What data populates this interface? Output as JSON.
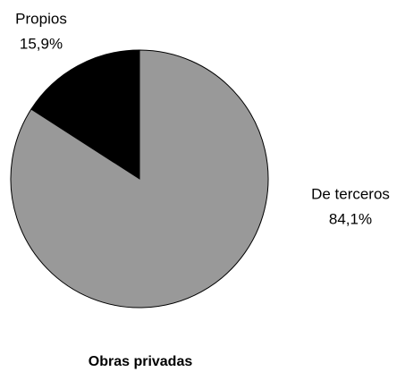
{
  "chart_data": {
    "type": "pie",
    "title": "Obras privadas",
    "categories": [
      "Propios",
      "De terceros"
    ],
    "values": [
      15.9,
      84.1
    ],
    "value_labels": [
      "15,9%",
      "84,1%"
    ],
    "colors": [
      "#000000",
      "#999999"
    ]
  }
}
